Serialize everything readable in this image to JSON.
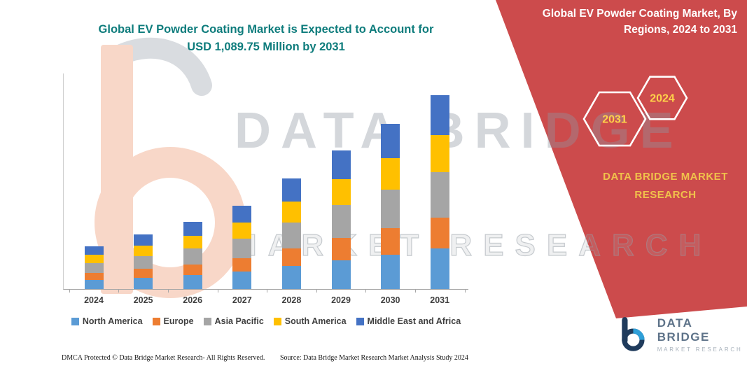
{
  "main_chart": {
    "title_line1": "Global EV Powder Coating Market is Expected to Account for",
    "title_line2": "USD 1,089.75 Million by 2031"
  },
  "chart_data": {
    "type": "bar",
    "stacked": true,
    "title": "Global EV Powder Coating Market is Expected to Account for USD 1,089.75 Million by 2031",
    "unit": "USD Million",
    "xlabel": "",
    "ylabel": "",
    "ylim": [
      0,
      1100
    ],
    "y_tick_labels_visible": false,
    "gridlines": false,
    "legend_position": "bottom",
    "categories": [
      "2024",
      "2025",
      "2026",
      "2027",
      "2028",
      "2029",
      "2030",
      "2031"
    ],
    "series": [
      {
        "name": "North America",
        "color": "#5B9BD5",
        "values": [
          50,
          64,
          79,
          98,
          130,
          163,
          194,
          228
        ]
      },
      {
        "name": "Europe",
        "color": "#ED7D31",
        "values": [
          39,
          49,
          60,
          75,
          99,
          125,
          148,
          174
        ]
      },
      {
        "name": "Asia Pacific",
        "color": "#A5A5A5",
        "values": [
          56,
          72,
          89,
          110,
          146,
          183,
          218,
          256
        ]
      },
      {
        "name": "South America",
        "color": "#FFC000",
        "values": [
          46,
          58,
          72,
          89,
          118,
          148,
          177,
          207
        ]
      },
      {
        "name": "Middle East and Africa",
        "color": "#4472C4",
        "values": [
          49,
          64,
          78,
          96,
          128,
          160,
          191,
          224.75
        ]
      }
    ],
    "totals": [
      240,
      307,
      378,
      468,
      621,
      779,
      928,
      1089.75
    ],
    "stated_total_2031": 1089.75
  },
  "side_panel": {
    "title": "Global EV Powder Coating Market, By Regions, 2024 to 2031",
    "hexagons": [
      {
        "label": "2031"
      },
      {
        "label": "2024"
      }
    ],
    "brand": "DATA BRIDGE MARKET RESEARCH"
  },
  "watermark": {
    "line1": "DATA BRIDGE",
    "line2": "MARKET RESEARCH"
  },
  "logo": {
    "title": "DATA BRIDGE",
    "subtitle": "MARKET RESEARCH"
  },
  "footer": {
    "dmca": "DMCA Protected © Data Bridge Market Research-  All Rights Reserved.",
    "source": "Source: Data Bridge Market Research  Market Analysis Study 2024"
  },
  "colors": {
    "title_teal": "#0E7C7C",
    "panel_red": "#CC4B4C",
    "panel_gold": "#F0C24B",
    "hex_year_yellow": "#FFD24A",
    "axis_gray": "#A6A6A6",
    "label_dark": "#3F3F3F",
    "logo_navy": "#1F3B5C",
    "logo_blue": "#2F9FD8",
    "watermark_gray": "#8F98A3",
    "watermark_peach": "#F3B193"
  }
}
